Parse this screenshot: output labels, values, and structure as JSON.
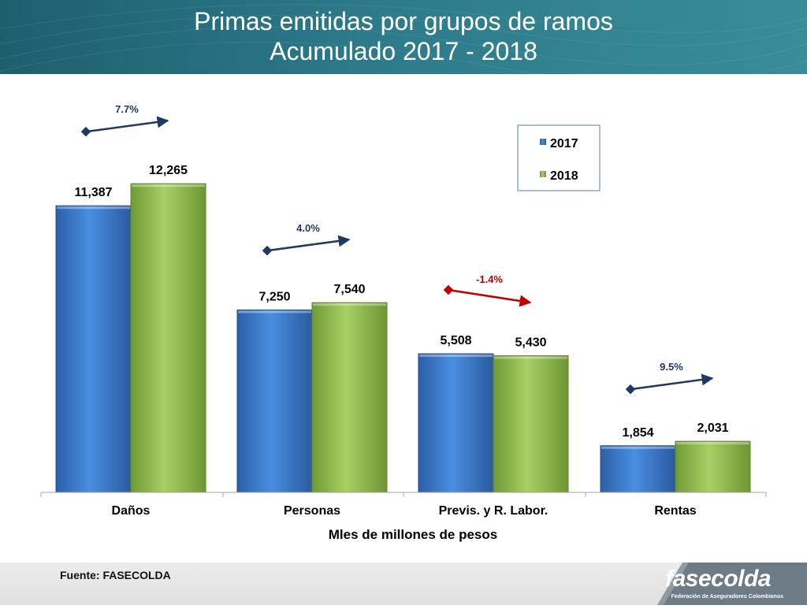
{
  "title": {
    "line1": "Primas emitidas por grupos de ramos",
    "line2": "Acumulado  2017 - 2018"
  },
  "chart_data": {
    "type": "bar",
    "categories": [
      "Daños",
      "Personas",
      "Previs. y R. Labor.",
      "Rentas"
    ],
    "series": [
      {
        "name": "2017",
        "values": [
          11387,
          7250,
          5508,
          1854
        ],
        "labels": [
          "11,387",
          "7,250",
          "5,508",
          "1,854"
        ],
        "color": "#3a78c9"
      },
      {
        "name": "2018",
        "values": [
          12265,
          7540,
          5430,
          2031
        ],
        "labels": [
          "12,265",
          "7,540",
          "5,430",
          "2,031"
        ],
        "color": "#92c050"
      }
    ],
    "growth": [
      {
        "label": "7.7%",
        "direction": "up",
        "color": "#1f3864"
      },
      {
        "label": "4.0%",
        "direction": "up",
        "color": "#1f3864"
      },
      {
        "label": "-1.4%",
        "direction": "down",
        "color": "#c00000"
      },
      {
        "label": "9.5%",
        "direction": "up",
        "color": "#1f3864"
      }
    ],
    "xlabel": "Mles de millones de pesos",
    "ylabel": "",
    "ylim": [
      0,
      14000
    ],
    "grid": false,
    "legend": "top-right"
  },
  "footer": {
    "source": "Fuente: FASECOLDA",
    "logo_name": "fasecolda",
    "logo_sub": "Federación de Aseguradores Colombianos"
  }
}
